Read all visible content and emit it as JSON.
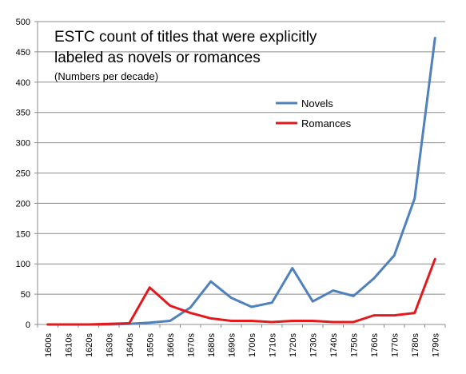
{
  "chart_data": {
    "type": "line",
    "title_lines": [
      "ESTC count of titles that were explicitly",
      "labeled as novels or romances"
    ],
    "subtitle": "(Numbers per decade)",
    "categories": [
      "1600s",
      "1610s",
      "1620s",
      "1630s",
      "1640s",
      "1650s",
      "1660s",
      "1670s",
      "1680s",
      "1690s",
      "1700s",
      "1710s",
      "1720s",
      "1730s",
      "1740s",
      "1750s",
      "1760s",
      "1770s",
      "1780s",
      "1790s"
    ],
    "series": [
      {
        "name": "Novels",
        "color": "#4f81bd",
        "values": [
          0,
          0,
          0,
          0,
          1,
          3,
          6,
          28,
          71,
          44,
          29,
          36,
          93,
          38,
          56,
          47,
          76,
          114,
          208,
          473
        ]
      },
      {
        "name": "Romances",
        "color": "#e31a1c",
        "values": [
          0,
          0,
          0,
          1,
          2,
          61,
          31,
          19,
          10,
          6,
          6,
          4,
          6,
          6,
          4,
          4,
          15,
          15,
          19,
          108
        ]
      }
    ],
    "ylim": [
      0,
      500
    ],
    "yticks": [
      0,
      50,
      100,
      150,
      200,
      250,
      300,
      350,
      400,
      450,
      500
    ],
    "xlabel": "",
    "ylabel": "",
    "grid": true,
    "legend_position": "right-upper-middle"
  }
}
